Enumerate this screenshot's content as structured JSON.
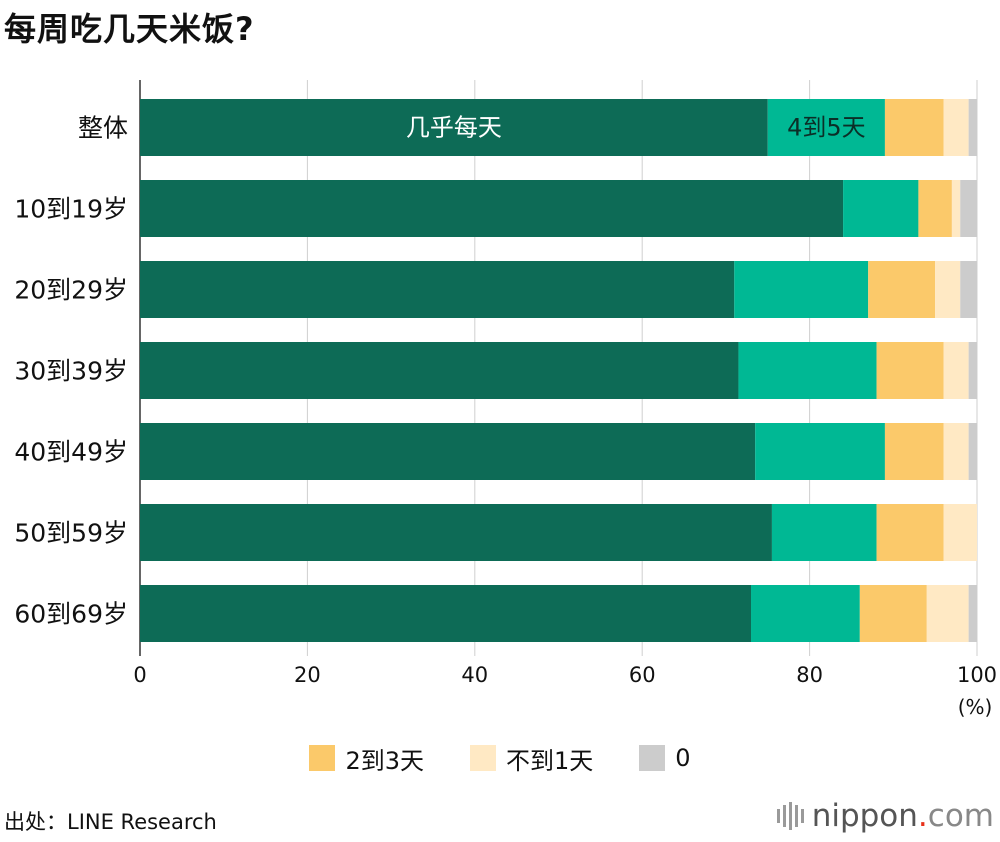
{
  "title": "每周吃几天米饭?",
  "chart_data": {
    "type": "bar",
    "orientation": "horizontal",
    "stacked": true,
    "title": "每周吃几天米饭?",
    "categories": [
      "整体",
      "10到19岁",
      "20到29岁",
      "30到39岁",
      "40到49岁",
      "50到59岁",
      "60到69岁"
    ],
    "series": [
      {
        "name": "几乎每天",
        "color": "#0d6b56",
        "values": [
          75,
          84,
          71,
          71.5,
          73.5,
          75.5,
          73
        ]
      },
      {
        "name": "4到5天",
        "color": "#00b894",
        "values": [
          14,
          9,
          16,
          16.5,
          15.5,
          12.5,
          13
        ]
      },
      {
        "name": "2到3天",
        "color": "#fbc96a",
        "values": [
          7,
          4,
          8,
          8,
          7,
          8,
          8
        ]
      },
      {
        "name": "不到1天",
        "color": "#ffe9c4",
        "values": [
          3,
          1,
          3,
          3,
          3,
          4,
          5
        ]
      },
      {
        "name": "0",
        "color": "#cccccc",
        "values": [
          1,
          2,
          2,
          1,
          1,
          0,
          1
        ]
      }
    ],
    "inline_labels": [
      "几乎每天",
      "4到5天"
    ],
    "xlim": [
      0,
      100
    ],
    "xticks": [
      "0",
      "20",
      "40",
      "60",
      "80",
      "100"
    ],
    "xunit": "(%)",
    "grid": true,
    "legend_position": "bottom",
    "legend": [
      "2到3天",
      "不到1天",
      "0"
    ]
  },
  "legend": {
    "item1": {
      "label": "2到3天",
      "color": "#fbc96a"
    },
    "item2": {
      "label": "不到1天",
      "color": "#ffe9c4"
    },
    "item3": {
      "label": "0",
      "color": "#cccccc"
    }
  },
  "source": "出处：LINE Research",
  "brand": {
    "name": "nippon",
    "dot": ".",
    "domain": "com"
  }
}
